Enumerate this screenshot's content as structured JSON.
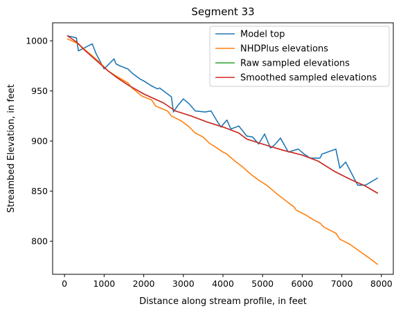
{
  "chart_data": {
    "type": "line",
    "title": "Segment 33",
    "xlabel": "Distance along stream profile, in feet",
    "ylabel": "Streambed Elevation, in feet",
    "xlim": [
      -300,
      8300
    ],
    "ylim": [
      767,
      1018
    ],
    "xticks": [
      0,
      1000,
      2000,
      3000,
      4000,
      5000,
      6000,
      7000,
      8000
    ],
    "yticks": [
      800,
      850,
      900,
      950,
      1000
    ],
    "grid": false,
    "legend_position": "top-right",
    "series": [
      {
        "name": "Model top",
        "color": "#1f77b4",
        "x": [
          75,
          300,
          350,
          500,
          700,
          800,
          1000,
          1100,
          1250,
          1300,
          1400,
          1600,
          1700,
          1900,
          2000,
          2200,
          2350,
          2400,
          2500,
          2700,
          2750,
          2850,
          3000,
          3150,
          3300,
          3550,
          3700,
          3850,
          3950,
          4100,
          4200,
          4400,
          4600,
          4750,
          4900,
          5050,
          5200,
          5300,
          5450,
          5650,
          5900,
          6050,
          6200,
          6450,
          6500,
          6850,
          6950,
          7100,
          7400,
          7600,
          7900
        ],
        "y": [
          1005,
          1003,
          990,
          993,
          997,
          987,
          972,
          976,
          982,
          977,
          975,
          972,
          968,
          962,
          960,
          955,
          952,
          953,
          950,
          944,
          929,
          935,
          942,
          937,
          930,
          929,
          930,
          920,
          914,
          921,
          912,
          915,
          905,
          904,
          897,
          907,
          893,
          896,
          903,
          889,
          892,
          887,
          883,
          883,
          887,
          892,
          873,
          879,
          856,
          856,
          863
        ]
      },
      {
        "name": "NHDPlus elevations",
        "color": "#ff7f0e",
        "x": [
          75,
          350,
          550,
          700,
          900,
          1100,
          1300,
          1600,
          1700,
          1950,
          2200,
          2300,
          2600,
          2700,
          2950,
          3150,
          3300,
          3500,
          3650,
          3850,
          4000,
          4100,
          4300,
          4500,
          4700,
          4900,
          5100,
          5250,
          5400,
          5600,
          5800,
          5850,
          6100,
          6300,
          6450,
          6550,
          6850,
          6950,
          7200,
          7450,
          7700,
          7900
        ],
        "y": [
          1002,
          997,
          990,
          985,
          978,
          970,
          965,
          958,
          953,
          945,
          941,
          935,
          930,
          925,
          920,
          914,
          908,
          904,
          898,
          893,
          889,
          887,
          880,
          874,
          867,
          861,
          856,
          851,
          846,
          840,
          834,
          831,
          826,
          821,
          818,
          814,
          808,
          802,
          797,
          790,
          783,
          777
        ]
      },
      {
        "name": "Raw sampled elevations",
        "color": "#2ca02c",
        "x": [
          75,
          300,
          500,
          700,
          900,
          1100,
          1300,
          1600,
          2000,
          2500,
          2800,
          3200,
          3600,
          4000,
          4400,
          4600,
          5000,
          5500,
          6000,
          6400,
          6800,
          7200,
          7600,
          7900
        ],
        "y": [
          1005,
          999,
          991,
          984,
          977,
          970,
          964,
          956,
          947,
          938,
          930,
          925,
          919,
          914,
          908,
          902,
          897,
          891,
          886,
          880,
          870,
          862,
          855,
          848
        ]
      },
      {
        "name": "Smoothed sampled elevations",
        "color": "#d62728",
        "x": [
          75,
          300,
          500,
          700,
          900,
          1100,
          1300,
          1600,
          2000,
          2500,
          2800,
          3200,
          3600,
          4000,
          4400,
          4600,
          5000,
          5500,
          6000,
          6400,
          6800,
          7200,
          7600,
          7900
        ],
        "y": [
          1005,
          999,
          991,
          984,
          977,
          970,
          964,
          956,
          947,
          938,
          930,
          925,
          919,
          914,
          908,
          902,
          897,
          891,
          886,
          880,
          870,
          862,
          855,
          848
        ]
      }
    ]
  }
}
